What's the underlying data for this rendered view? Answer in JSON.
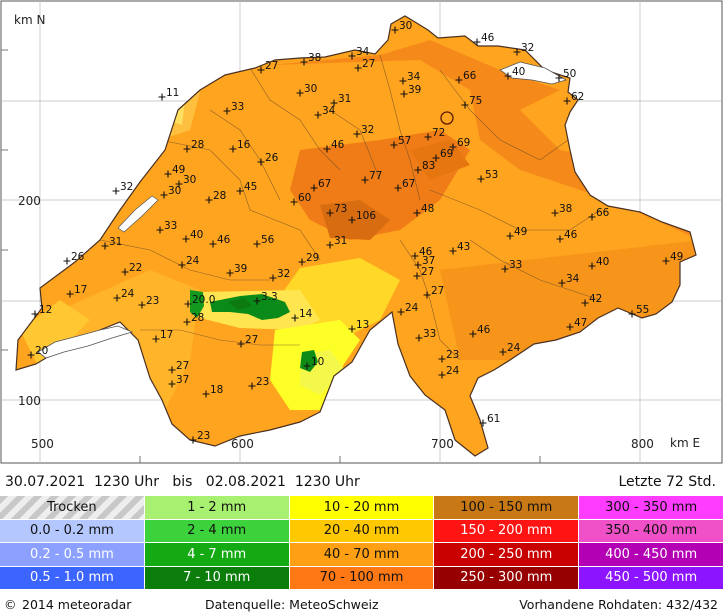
{
  "axes": {
    "y_unit": "km N",
    "x_unit": "km E",
    "y_ticks": [
      "200",
      "100"
    ],
    "x_ticks": [
      "500",
      "600",
      "700",
      "800"
    ]
  },
  "period": {
    "text": "30.07.2021  1230 Uhr   bis   02.08.2021  1230 Uhr",
    "window": "Letzte 72 Std."
  },
  "legend": [
    {
      "label": "Trocken",
      "color": "#d4d4d4",
      "dark": false,
      "dry": true
    },
    {
      "label": "1 - 2 mm",
      "color": "#a8f070",
      "dark": false
    },
    {
      "label": "10 - 20 mm",
      "color": "#ffff00",
      "dark": false
    },
    {
      "label": "100 - 150 mm",
      "color": "#c87814",
      "dark": false
    },
    {
      "label": "300 - 350 mm",
      "color": "#ff3cff",
      "dark": false
    },
    {
      "label": "0.0 - 0.2 mm",
      "color": "#b4c8ff",
      "dark": false
    },
    {
      "label": "2 - 4 mm",
      "color": "#3cd23c",
      "dark": false
    },
    {
      "label": "20 - 40 mm",
      "color": "#ffc800",
      "dark": false
    },
    {
      "label": "150 - 200 mm",
      "color": "#ff1414",
      "dark": true
    },
    {
      "label": "350 - 400 mm",
      "color": "#f050c8",
      "dark": false
    },
    {
      "label": "0.2 - 0.5 mm",
      "color": "#8ca0ff",
      "dark": true
    },
    {
      "label": "4 - 7 mm",
      "color": "#14aa14",
      "dark": true
    },
    {
      "label": "40 - 70 mm",
      "color": "#ffa014",
      "dark": false
    },
    {
      "label": "200 - 250 mm",
      "color": "#c80000",
      "dark": true
    },
    {
      "label": "400 - 450 mm",
      "color": "#b400b4",
      "dark": true
    },
    {
      "label": "0.5 - 1.0 mm",
      "color": "#3c64ff",
      "dark": true
    },
    {
      "label": "7 - 10 mm",
      "color": "#0a7d0a",
      "dark": true
    },
    {
      "label": "70 - 100 mm",
      "color": "#ff7814",
      "dark": false
    },
    {
      "label": "250 - 300 mm",
      "color": "#960000",
      "dark": true
    },
    {
      "label": "450 - 500 mm",
      "color": "#8c14ff",
      "dark": true
    }
  ],
  "stations": [
    {
      "x": 395,
      "y": 30,
      "v": "30"
    },
    {
      "x": 477,
      "y": 42,
      "v": "46"
    },
    {
      "x": 517,
      "y": 52,
      "v": "32"
    },
    {
      "x": 352,
      "y": 56,
      "v": "34"
    },
    {
      "x": 304,
      "y": 62,
      "v": "38"
    },
    {
      "x": 358,
      "y": 68,
      "v": "27"
    },
    {
      "x": 261,
      "y": 70,
      "v": "27"
    },
    {
      "x": 508,
      "y": 76,
      "v": "40"
    },
    {
      "x": 559,
      "y": 78,
      "v": "50"
    },
    {
      "x": 403,
      "y": 81,
      "v": "34"
    },
    {
      "x": 459,
      "y": 80,
      "v": "66"
    },
    {
      "x": 300,
      "y": 93,
      "v": "30"
    },
    {
      "x": 404,
      "y": 94,
      "v": "39"
    },
    {
      "x": 162,
      "y": 97,
      "v": "11"
    },
    {
      "x": 334,
      "y": 103,
      "v": "31"
    },
    {
      "x": 567,
      "y": 101,
      "v": "62"
    },
    {
      "x": 465,
      "y": 105,
      "v": "75"
    },
    {
      "x": 227,
      "y": 111,
      "v": "33"
    },
    {
      "x": 318,
      "y": 115,
      "v": "34"
    },
    {
      "x": 357,
      "y": 134,
      "v": "32"
    },
    {
      "x": 428,
      "y": 137,
      "v": "72"
    },
    {
      "x": 187,
      "y": 149,
      "v": "28"
    },
    {
      "x": 233,
      "y": 149,
      "v": "16"
    },
    {
      "x": 394,
      "y": 145,
      "v": "57"
    },
    {
      "x": 453,
      "y": 147,
      "v": "69"
    },
    {
      "x": 327,
      "y": 149,
      "v": "46"
    },
    {
      "x": 436,
      "y": 158,
      "v": "69"
    },
    {
      "x": 261,
      "y": 162,
      "v": "26"
    },
    {
      "x": 418,
      "y": 170,
      "v": "83"
    },
    {
      "x": 168,
      "y": 174,
      "v": "49"
    },
    {
      "x": 179,
      "y": 184,
      "v": "30"
    },
    {
      "x": 365,
      "y": 180,
      "v": "77"
    },
    {
      "x": 481,
      "y": 179,
      "v": "53"
    },
    {
      "x": 314,
      "y": 188,
      "v": "67"
    },
    {
      "x": 116,
      "y": 191,
      "v": "32"
    },
    {
      "x": 164,
      "y": 195,
      "v": "30"
    },
    {
      "x": 240,
      "y": 191,
      "v": "45"
    },
    {
      "x": 398,
      "y": 188,
      "v": "67"
    },
    {
      "x": 209,
      "y": 200,
      "v": "28"
    },
    {
      "x": 294,
      "y": 202,
      "v": "60"
    },
    {
      "x": 330,
      "y": 213,
      "v": "73"
    },
    {
      "x": 352,
      "y": 220,
      "v": "106"
    },
    {
      "x": 417,
      "y": 213,
      "v": "48"
    },
    {
      "x": 555,
      "y": 213,
      "v": "38"
    },
    {
      "x": 592,
      "y": 217,
      "v": "66"
    },
    {
      "x": 160,
      "y": 230,
      "v": "33"
    },
    {
      "x": 186,
      "y": 239,
      "v": "40"
    },
    {
      "x": 510,
      "y": 236,
      "v": "49"
    },
    {
      "x": 560,
      "y": 239,
      "v": "46"
    },
    {
      "x": 213,
      "y": 244,
      "v": "46"
    },
    {
      "x": 257,
      "y": 244,
      "v": "56"
    },
    {
      "x": 330,
      "y": 245,
      "v": "31"
    },
    {
      "x": 105,
      "y": 246,
      "v": "31"
    },
    {
      "x": 453,
      "y": 251,
      "v": "43"
    },
    {
      "x": 415,
      "y": 256,
      "v": "46"
    },
    {
      "x": 418,
      "y": 265,
      "v": "37"
    },
    {
      "x": 302,
      "y": 262,
      "v": "29"
    },
    {
      "x": 67,
      "y": 261,
      "v": "26"
    },
    {
      "x": 182,
      "y": 265,
      "v": "24"
    },
    {
      "x": 505,
      "y": 269,
      "v": "33"
    },
    {
      "x": 592,
      "y": 266,
      "v": "40"
    },
    {
      "x": 666,
      "y": 261,
      "v": "49"
    },
    {
      "x": 230,
      "y": 273,
      "v": "39"
    },
    {
      "x": 125,
      "y": 272,
      "v": "22"
    },
    {
      "x": 417,
      "y": 276,
      "v": "27"
    },
    {
      "x": 273,
      "y": 278,
      "v": "32"
    },
    {
      "x": 562,
      "y": 283,
      "v": "34"
    },
    {
      "x": 70,
      "y": 294,
      "v": "17"
    },
    {
      "x": 117,
      "y": 298,
      "v": "24"
    },
    {
      "x": 427,
      "y": 295,
      "v": "27"
    },
    {
      "x": 142,
      "y": 305,
      "v": "23"
    },
    {
      "x": 188,
      "y": 304,
      "v": "20.0"
    },
    {
      "x": 257,
      "y": 301,
      "v": "3.3"
    },
    {
      "x": 585,
      "y": 303,
      "v": "42"
    },
    {
      "x": 35,
      "y": 314,
      "v": "12"
    },
    {
      "x": 632,
      "y": 314,
      "v": "55"
    },
    {
      "x": 295,
      "y": 318,
      "v": "14"
    },
    {
      "x": 401,
      "y": 312,
      "v": "24"
    },
    {
      "x": 187,
      "y": 322,
      "v": "28"
    },
    {
      "x": 570,
      "y": 327,
      "v": "47"
    },
    {
      "x": 352,
      "y": 329,
      "v": "13"
    },
    {
      "x": 473,
      "y": 334,
      "v": "46"
    },
    {
      "x": 419,
      "y": 338,
      "v": "33"
    },
    {
      "x": 156,
      "y": 339,
      "v": "17"
    },
    {
      "x": 241,
      "y": 344,
      "v": "27"
    },
    {
      "x": 503,
      "y": 352,
      "v": "24"
    },
    {
      "x": 31,
      "y": 355,
      "v": "20"
    },
    {
      "x": 442,
      "y": 359,
      "v": "23"
    },
    {
      "x": 307,
      "y": 366,
      "v": "10"
    },
    {
      "x": 172,
      "y": 370,
      "v": "27"
    },
    {
      "x": 442,
      "y": 375,
      "v": "24"
    },
    {
      "x": 172,
      "y": 384,
      "v": "37"
    },
    {
      "x": 252,
      "y": 386,
      "v": "23"
    },
    {
      "x": 206,
      "y": 394,
      "v": "18"
    },
    {
      "x": 483,
      "y": 423,
      "v": "61"
    },
    {
      "x": 193,
      "y": 440,
      "v": "23"
    }
  ],
  "footer": {
    "copyright": "2014  meteoradar",
    "source": "Datenquelle: MeteoSchweiz",
    "raw": "Vorhandene Rohdaten: 432/432"
  }
}
